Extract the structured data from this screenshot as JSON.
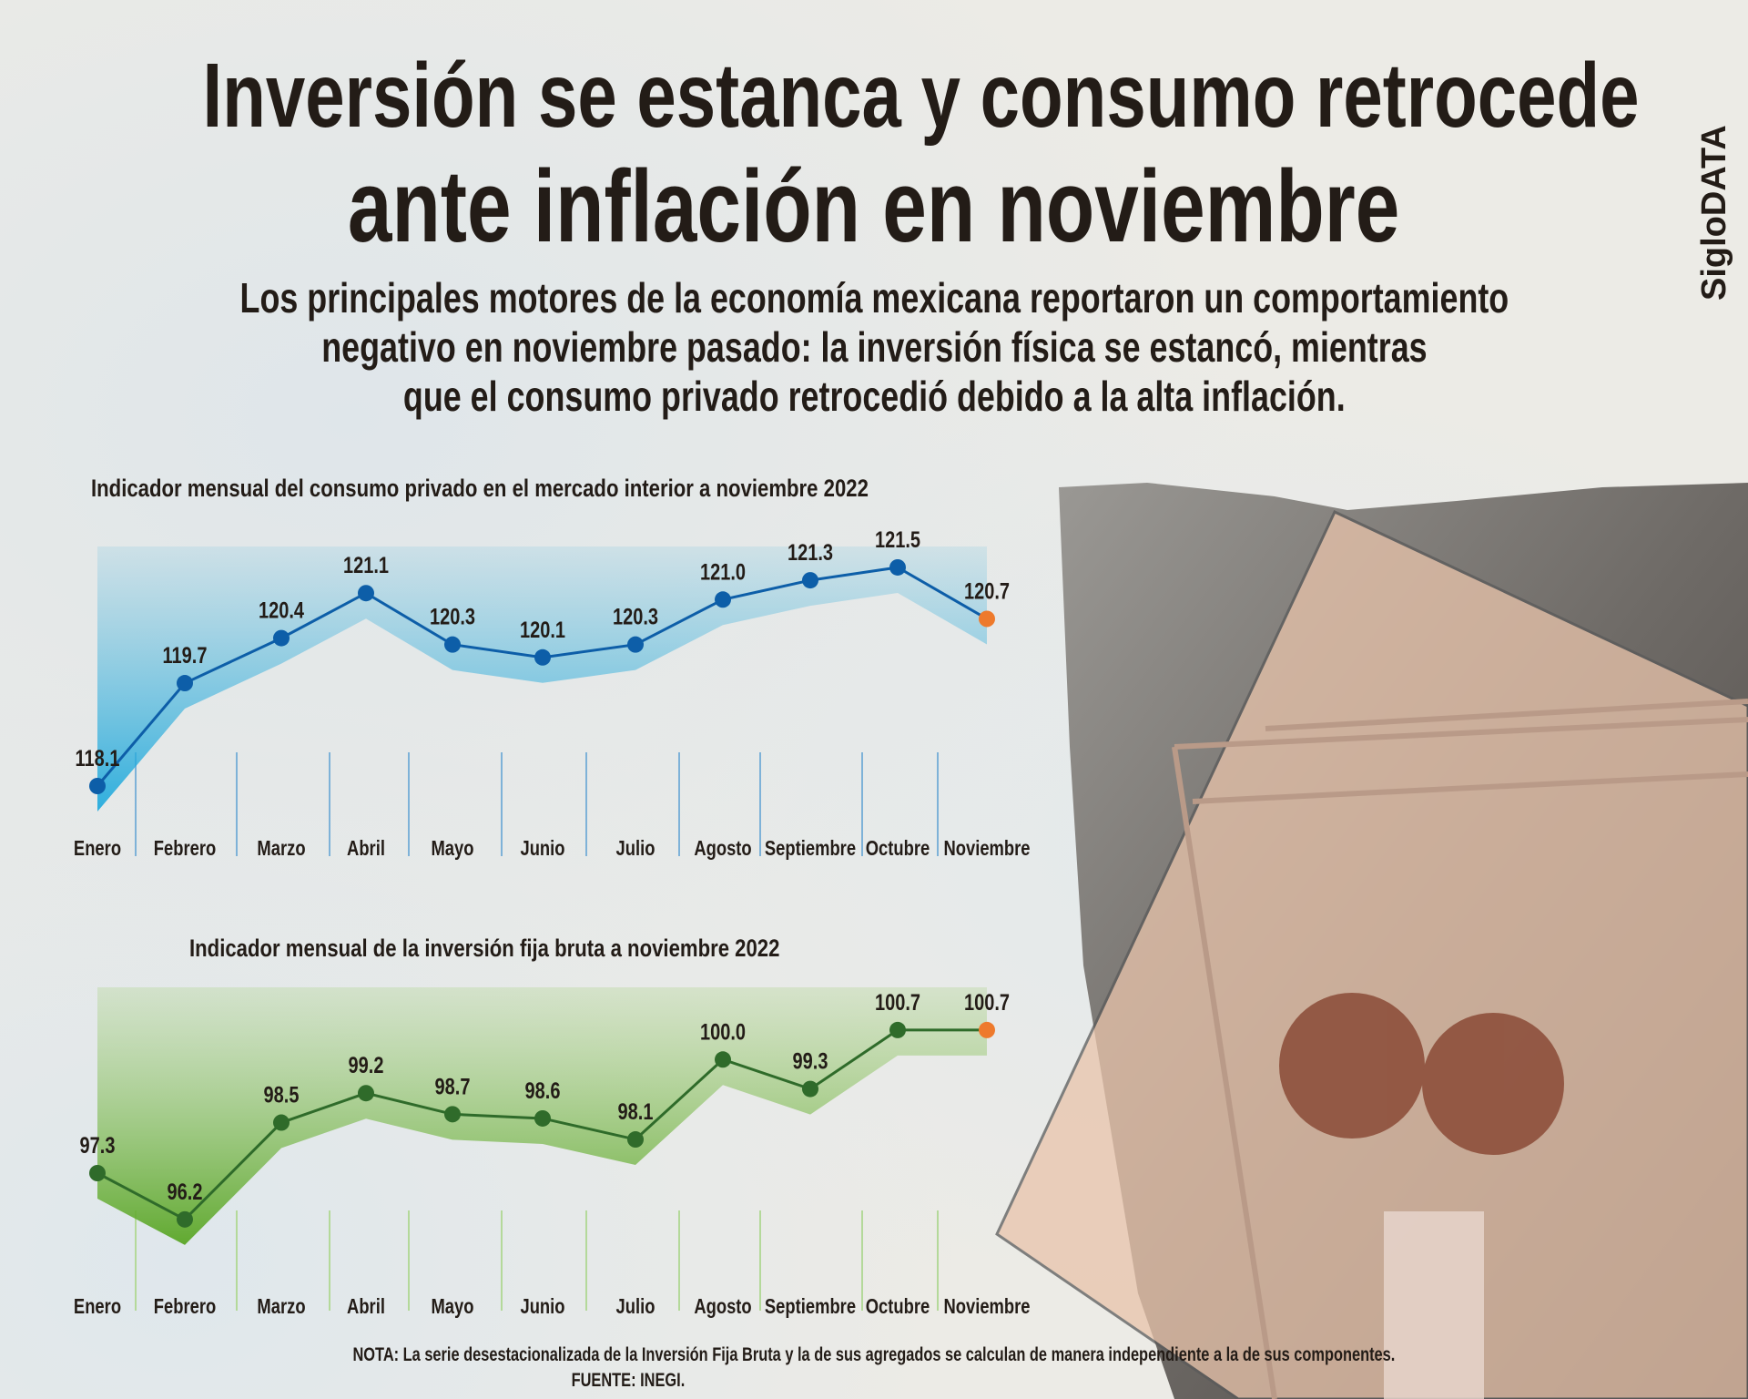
{
  "header": {
    "title_line1": "Inversión se estanca y consumo retrocede",
    "title_line2": "ante inflación en noviembre",
    "subtitle": [
      "Los principales motores de la economía mexicana reportaron un comportamiento",
      "negativo en noviembre pasado: la inversión física se estancó, mientras",
      "que el consumo privado retrocedió debido a la alta inflación."
    ],
    "brand": "SigloDATA"
  },
  "colors": {
    "consumo_line": "#0d5ea8",
    "consumo_fill": "#4fb6dc",
    "inversion_line": "#2f6b2a",
    "inversion_fill": "#6fb33a",
    "highlight": "#ee7a2c"
  },
  "chart_data": [
    {
      "type": "line",
      "title": "Indicador mensual del consumo privado en el mercado interior a noviembre 2022",
      "categories": [
        "Enero",
        "Febrero",
        "Marzo",
        "Abril",
        "Mayo",
        "Junio",
        "Julio",
        "Agosto",
        "Septiembre",
        "Octubre",
        "Noviembre"
      ],
      "values": [
        118.1,
        119.7,
        120.4,
        121.1,
        120.3,
        120.1,
        120.3,
        121.0,
        121.3,
        121.5,
        120.7
      ],
      "labels": [
        "118.1",
        "119.7",
        "120.4",
        "121.1",
        "120.3",
        "120.1",
        "120.3",
        "121.0",
        "121.3",
        "121.5",
        "120.7"
      ],
      "highlight_last": true,
      "xlabel": "",
      "ylabel": ""
    },
    {
      "type": "line",
      "title": "Indicador mensual de la inversión fija bruta a noviembre 2022",
      "categories": [
        "Enero",
        "Febrero",
        "Marzo",
        "Abril",
        "Mayo",
        "Junio",
        "Julio",
        "Agosto",
        "Septiembre",
        "Octubre",
        "Noviembre"
      ],
      "values": [
        97.3,
        96.2,
        98.5,
        99.2,
        98.7,
        98.6,
        98.1,
        100.0,
        99.3,
        100.7,
        100.7
      ],
      "labels": [
        "97.3",
        "96.2",
        "98.5",
        "99.2",
        "98.7",
        "98.6",
        "98.1",
        "100.0",
        "99.3",
        "100.7",
        "100.7"
      ],
      "highlight_last": true,
      "xlabel": "",
      "ylabel": ""
    }
  ],
  "footer": {
    "note": "NOTA: La serie desestacionalizada de la Inversión Fija Bruta y la de sus agregados se calculan de manera independiente a la de sus componentes.",
    "source": "FUENTE: INEGI."
  }
}
